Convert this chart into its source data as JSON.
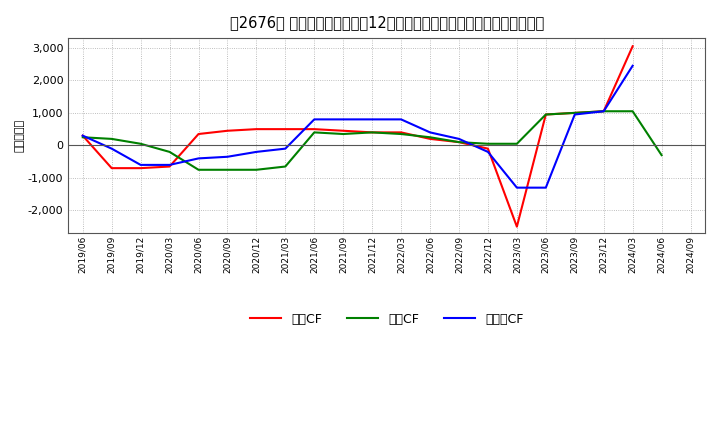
{
  "title": "　2676、 キャッシュフローの12か月移動合計の対前年同期増減額の推移",
  "title_prefix": "　2676、",
  "title_main": "キャッシュフローの12か月移動合計の対前年同期増減額の推移",
  "ylabel": "（百万円）",
  "x_labels": [
    "2019/06",
    "2019/09",
    "2019/12",
    "2020/03",
    "2020/06",
    "2020/09",
    "2020/12",
    "2021/03",
    "2021/06",
    "2021/09",
    "2021/12",
    "2022/03",
    "2022/06",
    "2022/09",
    "2022/12",
    "2023/03",
    "2023/06",
    "2023/09",
    "2023/12",
    "2024/03",
    "2024/06",
    "2024/09"
  ],
  "operating_cf": [
    300,
    -700,
    -700,
    -650,
    350,
    450,
    500,
    500,
    500,
    450,
    400,
    400,
    200,
    100,
    -100,
    -2500,
    950,
    1000,
    1050,
    3050,
    null,
    null
  ],
  "investing_cf": [
    250,
    200,
    50,
    -200,
    -750,
    -750,
    -750,
    -650,
    400,
    350,
    400,
    350,
    250,
    100,
    50,
    50,
    950,
    1000,
    1050,
    1050,
    -300,
    null
  ],
  "free_cf": [
    300,
    -100,
    -600,
    -600,
    -400,
    -350,
    -200,
    -100,
    800,
    800,
    800,
    800,
    400,
    200,
    -200,
    -1300,
    -1300,
    950,
    1050,
    2450,
    null,
    null
  ],
  "ylim": [
    -2700,
    3300
  ],
  "yticks": [
    -2000,
    -1000,
    0,
    1000,
    2000,
    3000
  ],
  "operating_color": "#ff0000",
  "investing_color": "#008000",
  "free_color": "#0000ff",
  "bg_color": "#ffffff",
  "plot_bg_color": "#ffffff",
  "grid_color": "#aaaaaa",
  "title_fontsize": 10.5,
  "legend_labels": [
    "営業CF",
    "投資CF",
    "フリーCF"
  ]
}
